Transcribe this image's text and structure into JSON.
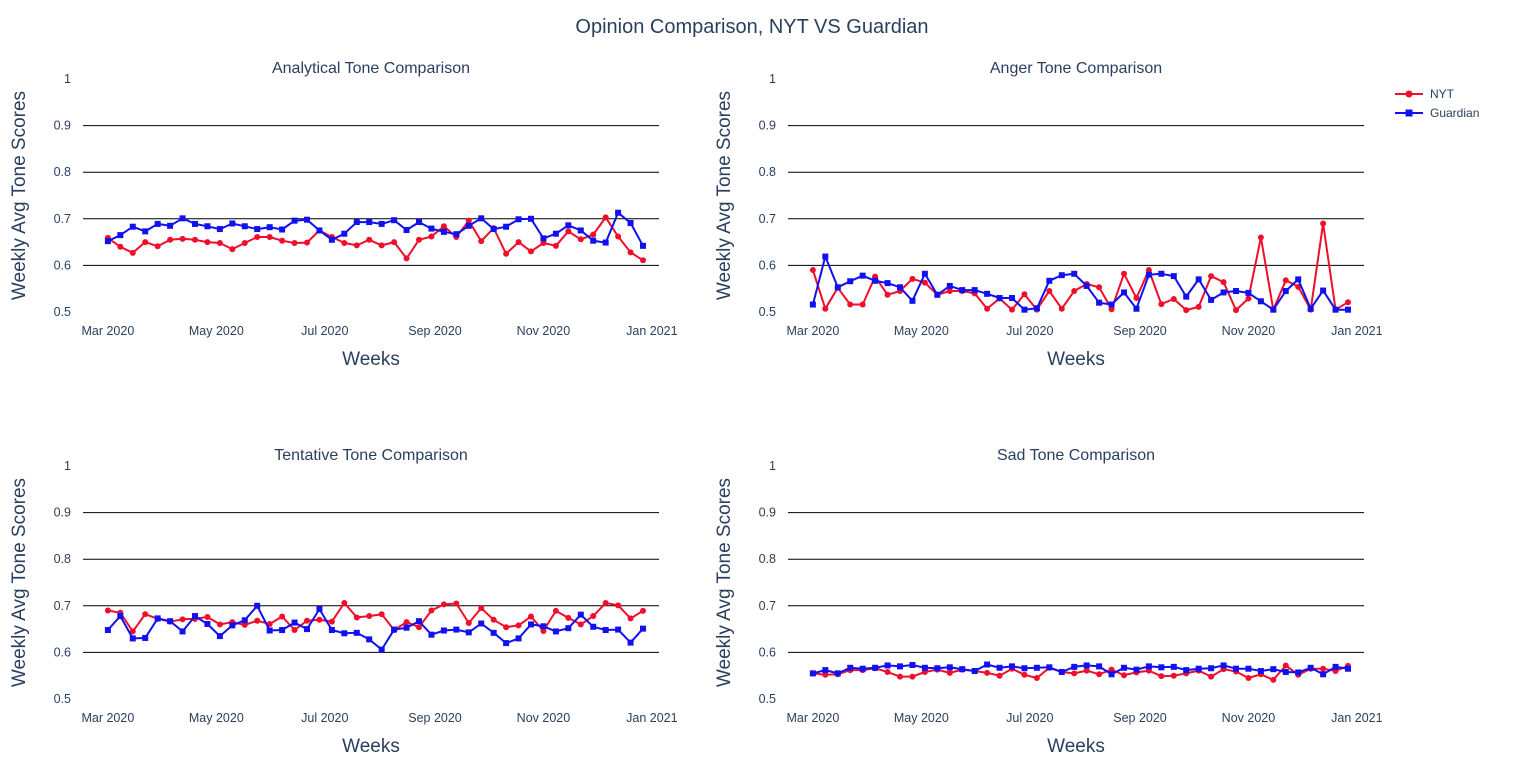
{
  "figure": {
    "title": "Opinion Comparison, NYT VS Guardian",
    "legend": [
      {
        "name": "NYT",
        "color": "#f00e2a",
        "marker": "circle"
      },
      {
        "name": "Guardian",
        "color": "#1010f0",
        "marker": "square"
      }
    ],
    "legend_position": "top-right"
  },
  "chart_data": [
    {
      "type": "line",
      "title": "Analytical Tone Comparison",
      "xlabel": "Weeks",
      "ylabel": "Weekly Avg Tone Scores",
      "x_ticks": [
        "Mar 2020",
        "May 2020",
        "Jul 2020",
        "Sep 2020",
        "Nov 2020",
        "Jan 2021"
      ],
      "x_range": [
        "2020-02-16",
        "2021-01-05"
      ],
      "y_ticks": [
        "0.5",
        "0.6",
        "0.7",
        "0.8",
        "0.9",
        "1"
      ],
      "ylim": [
        0.5,
        1
      ],
      "grid": "horizontal",
      "x_start": "2020-03-01",
      "x_step_days": 7,
      "series": [
        {
          "name": "NYT",
          "values": [
            0.659,
            0.64,
            0.627,
            0.65,
            0.641,
            0.655,
            0.657,
            0.655,
            0.65,
            0.648,
            0.635,
            0.648,
            0.661,
            0.661,
            0.653,
            0.648,
            0.649,
            0.675,
            0.661,
            0.648,
            0.643,
            0.655,
            0.643,
            0.65,
            0.615,
            0.655,
            0.662,
            0.684,
            0.661,
            0.696,
            0.652,
            0.68,
            0.625,
            0.65,
            0.63,
            0.648,
            0.642,
            0.673,
            0.656,
            0.666,
            0.703,
            0.662,
            0.628,
            0.611
          ]
        },
        {
          "name": "Guardian",
          "values": [
            0.652,
            0.665,
            0.683,
            0.673,
            0.689,
            0.685,
            0.701,
            0.689,
            0.684,
            0.678,
            0.69,
            0.684,
            0.678,
            0.682,
            0.677,
            0.696,
            0.698,
            0.675,
            0.655,
            0.668,
            0.693,
            0.693,
            0.689,
            0.697,
            0.676,
            0.693,
            0.679,
            0.672,
            0.667,
            0.685,
            0.701,
            0.678,
            0.683,
            0.699,
            0.7,
            0.658,
            0.668,
            0.686,
            0.675,
            0.653,
            0.649,
            0.713,
            0.691,
            0.642
          ]
        }
      ]
    },
    {
      "type": "line",
      "title": "Anger Tone Comparison",
      "xlabel": "Weeks",
      "ylabel": "Weekly Avg Tone Scores",
      "x_ticks": [
        "Mar 2020",
        "May 2020",
        "Jul 2020",
        "Sep 2020",
        "Nov 2020",
        "Jan 2021"
      ],
      "x_range": [
        "2020-02-16",
        "2021-01-05"
      ],
      "y_ticks": [
        "0.5",
        "0.6",
        "0.7",
        "0.8",
        "0.9",
        "1"
      ],
      "ylim": [
        0.5,
        1
      ],
      "grid": "horizontal",
      "x_start": "2020-03-01",
      "x_step_days": 7,
      "series": [
        {
          "name": "NYT",
          "values": [
            0.59,
            0.507,
            0.552,
            0.516,
            0.516,
            0.576,
            0.537,
            0.545,
            0.571,
            0.563,
            0.537,
            0.545,
            0.545,
            0.54,
            0.507,
            0.529,
            0.505,
            0.538,
            0.505,
            0.545,
            0.507,
            0.545,
            0.56,
            0.553,
            0.506,
            0.582,
            0.53,
            0.59,
            0.517,
            0.528,
            0.504,
            0.511,
            0.577,
            0.564,
            0.504,
            0.529,
            0.66,
            0.505,
            0.568,
            0.554,
            0.505,
            0.69,
            0.505,
            0.521
          ]
        },
        {
          "name": "Guardian",
          "values": [
            0.516,
            0.619,
            0.553,
            0.566,
            0.578,
            0.567,
            0.562,
            0.553,
            0.524,
            0.582,
            0.537,
            0.556,
            0.547,
            0.547,
            0.539,
            0.53,
            0.53,
            0.505,
            0.508,
            0.567,
            0.579,
            0.582,
            0.556,
            0.52,
            0.516,
            0.542,
            0.507,
            0.58,
            0.582,
            0.577,
            0.533,
            0.57,
            0.526,
            0.542,
            0.545,
            0.541,
            0.523,
            0.505,
            0.545,
            0.57,
            0.507,
            0.546,
            0.505,
            0.505
          ]
        }
      ]
    },
    {
      "type": "line",
      "title": "Tentative Tone Comparison",
      "xlabel": "Weeks",
      "ylabel": "Weekly Avg Tone Scores",
      "x_ticks": [
        "Mar 2020",
        "May 2020",
        "Jul 2020",
        "Sep 2020",
        "Nov 2020",
        "Jan 2021"
      ],
      "x_range": [
        "2020-02-16",
        "2021-01-05"
      ],
      "y_ticks": [
        "0.5",
        "0.6",
        "0.7",
        "0.8",
        "0.9",
        "1"
      ],
      "ylim": [
        0.5,
        1
      ],
      "grid": "horizontal",
      "x_start": "2020-03-01",
      "x_step_days": 7,
      "series": [
        {
          "name": "NYT",
          "values": [
            0.69,
            0.685,
            0.645,
            0.682,
            0.672,
            0.666,
            0.671,
            0.672,
            0.676,
            0.66,
            0.665,
            0.659,
            0.668,
            0.661,
            0.677,
            0.648,
            0.668,
            0.67,
            0.666,
            0.706,
            0.675,
            0.678,
            0.682,
            0.648,
            0.665,
            0.654,
            0.69,
            0.703,
            0.705,
            0.663,
            0.695,
            0.67,
            0.654,
            0.658,
            0.677,
            0.646,
            0.689,
            0.674,
            0.66,
            0.678,
            0.706,
            0.701,
            0.673,
            0.689
          ]
        },
        {
          "name": "Guardian",
          "values": [
            0.648,
            0.678,
            0.63,
            0.631,
            0.673,
            0.667,
            0.645,
            0.678,
            0.661,
            0.635,
            0.658,
            0.669,
            0.7,
            0.647,
            0.648,
            0.664,
            0.65,
            0.693,
            0.648,
            0.641,
            0.642,
            0.628,
            0.606,
            0.649,
            0.653,
            0.667,
            0.638,
            0.647,
            0.649,
            0.643,
            0.662,
            0.642,
            0.62,
            0.63,
            0.66,
            0.656,
            0.645,
            0.652,
            0.681,
            0.655,
            0.648,
            0.649,
            0.621,
            0.651
          ]
        }
      ]
    },
    {
      "type": "line",
      "title": "Sad Tone Comparison",
      "xlabel": "Weeks",
      "ylabel": "Weekly Avg Tone Scores",
      "x_ticks": [
        "Mar 2020",
        "May 2020",
        "Jul 2020",
        "Sep 2020",
        "Nov 2020",
        "Jan 2021"
      ],
      "x_range": [
        "2020-02-16",
        "2021-01-05"
      ],
      "y_ticks": [
        "0.5",
        "0.6",
        "0.7",
        "0.8",
        "0.9",
        "1"
      ],
      "ylim": [
        0.5,
        1
      ],
      "grid": "horizontal",
      "x_start": "2020-03-01",
      "x_step_days": 7,
      "series": [
        {
          "name": "NYT",
          "values": [
            0.555,
            0.552,
            0.553,
            0.562,
            0.562,
            0.566,
            0.558,
            0.548,
            0.548,
            0.558,
            0.563,
            0.556,
            0.563,
            0.56,
            0.556,
            0.55,
            0.565,
            0.552,
            0.545,
            0.567,
            0.558,
            0.555,
            0.561,
            0.553,
            0.563,
            0.551,
            0.557,
            0.561,
            0.549,
            0.55,
            0.555,
            0.561,
            0.548,
            0.564,
            0.559,
            0.545,
            0.553,
            0.541,
            0.572,
            0.552,
            0.565,
            0.565,
            0.56,
            0.571
          ]
        },
        {
          "name": "Guardian",
          "values": [
            0.555,
            0.562,
            0.555,
            0.567,
            0.565,
            0.567,
            0.572,
            0.57,
            0.573,
            0.567,
            0.566,
            0.568,
            0.564,
            0.56,
            0.574,
            0.567,
            0.57,
            0.566,
            0.567,
            0.568,
            0.558,
            0.569,
            0.572,
            0.57,
            0.553,
            0.567,
            0.563,
            0.57,
            0.568,
            0.569,
            0.562,
            0.565,
            0.566,
            0.572,
            0.565,
            0.565,
            0.56,
            0.564,
            0.558,
            0.557,
            0.567,
            0.553,
            0.569,
            0.565
          ]
        }
      ]
    }
  ]
}
